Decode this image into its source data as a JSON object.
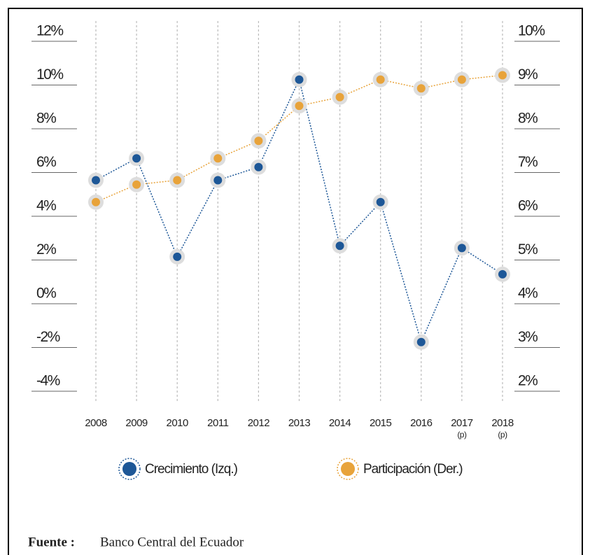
{
  "chart_data": {
    "type": "line",
    "categories": [
      "2008",
      "2009",
      "2010",
      "2011",
      "2012",
      "2013",
      "2014",
      "2015",
      "2016",
      "2017 (p)",
      "2018 (p)"
    ],
    "series": [
      {
        "name": "Crecimiento (Izq.)",
        "color": "#1d5797",
        "values": [
          5.2,
          6.2,
          1.7,
          5.2,
          5.8,
          9.8,
          2.2,
          4.2,
          -2.2,
          2.1,
          0.9
        ]
      },
      {
        "name": "Participación (Der.)",
        "color": "#e8a33a",
        "axis": "y2",
        "values": [
          6.1,
          6.5,
          6.6,
          7.1,
          7.5,
          8.3,
          8.5,
          8.9,
          8.7,
          8.9,
          9.0
        ]
      }
    ],
    "ylim": [
      -4,
      12
    ],
    "yticks": [
      {
        "value": 12,
        "label": "12%"
      },
      {
        "value": 10,
        "label": "10%"
      },
      {
        "value": 8,
        "label": "8%"
      },
      {
        "value": 6,
        "label": "6%"
      },
      {
        "value": 4,
        "label": "4%"
      },
      {
        "value": 2,
        "label": "2%"
      },
      {
        "value": 0,
        "label": "0%"
      },
      {
        "value": -2,
        "label": "-2%"
      },
      {
        "value": -4,
        "label": "-4%"
      }
    ],
    "y2lim": [
      2,
      10
    ],
    "y2ticks": [
      {
        "value": 10,
        "label": "10%"
      },
      {
        "value": 9,
        "label": "9%"
      },
      {
        "value": 8,
        "label": "8%"
      },
      {
        "value": 7,
        "label": "7%"
      },
      {
        "value": 6,
        "label": "6%"
      },
      {
        "value": 5,
        "label": "5%"
      },
      {
        "value": 4,
        "label": "4%"
      },
      {
        "value": 3,
        "label": "3%"
      },
      {
        "value": 2,
        "label": "2%"
      }
    ],
    "grid": true,
    "source_label": "Fuente :",
    "source": "Banco Central del Ecuador"
  }
}
